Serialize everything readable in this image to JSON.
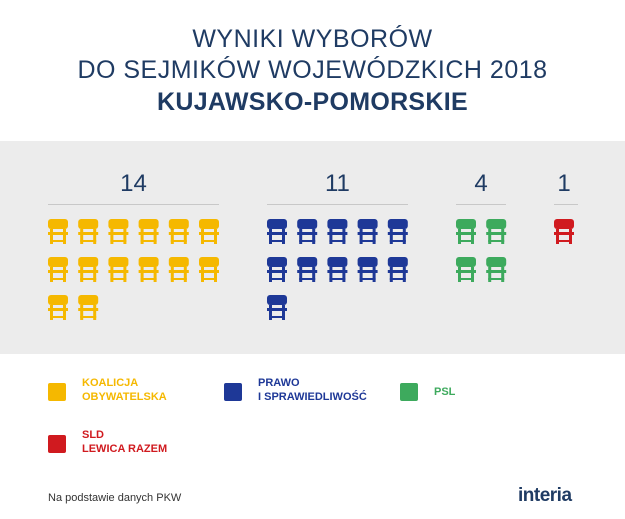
{
  "header": {
    "line1": "WYNIKI WYBORÓW",
    "line2": "DO SEJMIKÓW WOJEWÓDZKICH 2018",
    "region": "KUJAWSKO-POMORSKIE"
  },
  "chart_data": {
    "type": "seat-chart",
    "title": "WYNIKI WYBORÓW DO SEJMIKÓW WOJEWÓDZKICH 2018 KUJAWSKO-POMORSKIE",
    "series": [
      {
        "name": "KOALICJA OBYWATELSKA",
        "seats": 14,
        "color": "#f5b800"
      },
      {
        "name": "PRAWO I SPRAWIEDLIWOŚĆ",
        "seats": 11,
        "color": "#1e3897"
      },
      {
        "name": "PSL",
        "seats": 4,
        "color": "#3daa5d"
      },
      {
        "name": "SLD LEWICA RAZEM",
        "seats": 1,
        "color": "#d01a1f"
      }
    ],
    "legend_position": "bottom"
  },
  "legend": [
    {
      "line1": "KOALICJA",
      "line2": "OBYWATELSKA",
      "color": "#f5b800"
    },
    {
      "line1": "PRAWO",
      "line2": "I SPRAWIEDLIWOŚĆ",
      "color": "#1e3897"
    },
    {
      "line1": "PSL",
      "line2": "",
      "color": "#3daa5d"
    },
    {
      "line1": "SLD",
      "line2": "LEWICA RAZEM",
      "color": "#d01a1f"
    }
  ],
  "footer": {
    "source": "Na podstawie danych PKW",
    "logo": "interia"
  }
}
